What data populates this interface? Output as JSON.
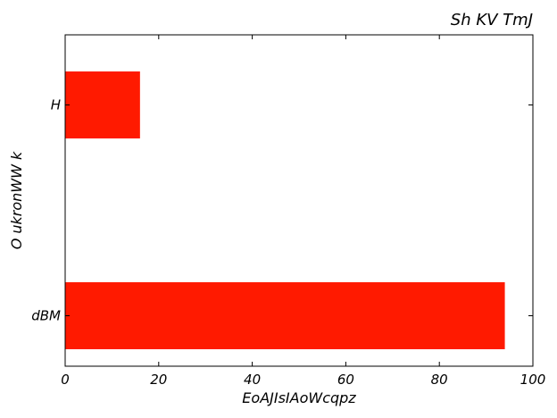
{
  "chart_data": {
    "type": "bar",
    "orientation": "horizontal",
    "title": "Sh KV  TmJ",
    "title_align": "right",
    "xlabel": "EoAJIsIAoWcqpz",
    "ylabel": "O ukronWW  k",
    "categories": [
      "dBM",
      "H"
    ],
    "values": [
      94,
      16
    ],
    "xlim": [
      0,
      100
    ],
    "xticks": [
      0,
      20,
      40,
      60,
      80,
      100
    ],
    "xtick_labels": [
      "0",
      "20",
      "40",
      "60",
      "80",
      "100"
    ],
    "bar_color": "#ff1a00",
    "grid": false,
    "legend": "none"
  }
}
